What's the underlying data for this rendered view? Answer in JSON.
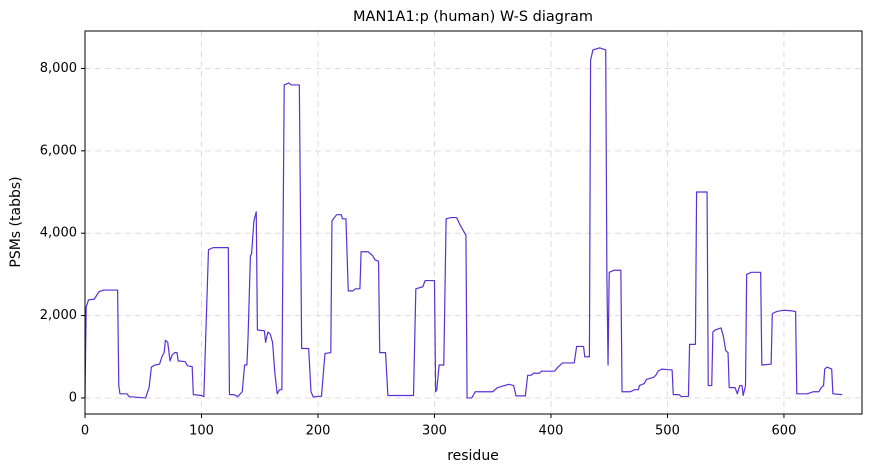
{
  "chart_data": {
    "type": "line",
    "title": "MAN1A1:p (human) W-S diagram",
    "x_label": "residue",
    "y_label": "PSMs (tabbs)",
    "xlim": [
      0,
      667
    ],
    "ylim": [
      -390,
      8910
    ],
    "xticks": [
      0,
      100,
      200,
      300,
      400,
      500,
      600
    ],
    "yticks": [
      0,
      {
        "value": 2000,
        "label": "2,000"
      },
      {
        "value": 4000,
        "label": "4,000"
      },
      {
        "value": 6000,
        "label": "6,000"
      },
      {
        "value": 8000,
        "label": "8,000"
      }
    ],
    "grid": true,
    "x": [
      0,
      1,
      3,
      8,
      12,
      16,
      28,
      29,
      30,
      36,
      38,
      52,
      55,
      57,
      60,
      64,
      66,
      68,
      69,
      71,
      73,
      75,
      77,
      79,
      80,
      86,
      88,
      92,
      93,
      100,
      102,
      104,
      106,
      110,
      123,
      124,
      128,
      131,
      135,
      137,
      139,
      140,
      142,
      143,
      145,
      147,
      148,
      154,
      155,
      157,
      159,
      161,
      163,
      165,
      167,
      169,
      171,
      175,
      177,
      184,
      186,
      192,
      194,
      196,
      200,
      203,
      206,
      211,
      212,
      216,
      220,
      221,
      224,
      226,
      230,
      232,
      236,
      237,
      243,
      247,
      249,
      252,
      253,
      258,
      260,
      279,
      282,
      284,
      290,
      292,
      300,
      301,
      302,
      304,
      308,
      310,
      314,
      319,
      322,
      327,
      328,
      332,
      335,
      344,
      350,
      354,
      360,
      364,
      368,
      370,
      378,
      380,
      383,
      385,
      390,
      392,
      403,
      406,
      410,
      420,
      422,
      428,
      429,
      433,
      434,
      436,
      442,
      447,
      448,
      449,
      450,
      454,
      460,
      461,
      468,
      472,
      475,
      476,
      480,
      482,
      488,
      490,
      492,
      495,
      504,
      505,
      510,
      512,
      518,
      519,
      524,
      525,
      534,
      535,
      538,
      539,
      541,
      546,
      548,
      550,
      552,
      553,
      558,
      560,
      562,
      564,
      565,
      567,
      568,
      572,
      580,
      581,
      589,
      590,
      594,
      600,
      605,
      610,
      611,
      620,
      625,
      630,
      632,
      634,
      635,
      637,
      641,
      642,
      650
    ],
    "series": [
      {
        "name": "PSMs",
        "color": "#5b30d4",
        "values": [
          0,
          2200,
          2380,
          2400,
          2580,
          2620,
          2620,
          300,
          100,
          100,
          30,
          0,
          250,
          750,
          800,
          820,
          1000,
          1100,
          1400,
          1350,
          900,
          1050,
          1100,
          1100,
          900,
          880,
          780,
          760,
          80,
          60,
          30,
          1800,
          3600,
          3650,
          3650,
          80,
          80,
          30,
          150,
          800,
          800,
          1500,
          3450,
          3500,
          4300,
          4520,
          1650,
          1630,
          1350,
          1600,
          1550,
          1350,
          600,
          100,
          200,
          200,
          7600,
          7650,
          7600,
          7600,
          1200,
          1200,
          150,
          20,
          40,
          40,
          1080,
          1100,
          4300,
          4450,
          4450,
          4350,
          4350,
          2600,
          2600,
          2650,
          2650,
          3550,
          3550,
          3450,
          3350,
          3320,
          1100,
          1100,
          60,
          60,
          60,
          2650,
          2700,
          2850,
          2850,
          150,
          200,
          800,
          800,
          4350,
          4380,
          4380,
          4200,
          3950,
          0,
          0,
          150,
          150,
          150,
          250,
          300,
          330,
          300,
          50,
          50,
          550,
          550,
          600,
          600,
          650,
          650,
          750,
          850,
          850,
          1250,
          1250,
          1000,
          1000,
          8200,
          8450,
          8500,
          8450,
          3000,
          800,
          3050,
          3100,
          3100,
          150,
          150,
          200,
          200,
          300,
          350,
          450,
          500,
          550,
          650,
          700,
          680,
          80,
          80,
          30,
          40,
          1300,
          1300,
          5000,
          5000,
          300,
          300,
          1600,
          1650,
          1700,
          1500,
          1150,
          1100,
          250,
          250,
          100,
          300,
          300,
          60,
          300,
          3000,
          3050,
          3050,
          800,
          820,
          2050,
          2100,
          2130,
          2120,
          2100,
          100,
          100,
          150,
          150,
          250,
          300,
          700,
          750,
          700,
          100,
          80
        ]
      }
    ]
  }
}
